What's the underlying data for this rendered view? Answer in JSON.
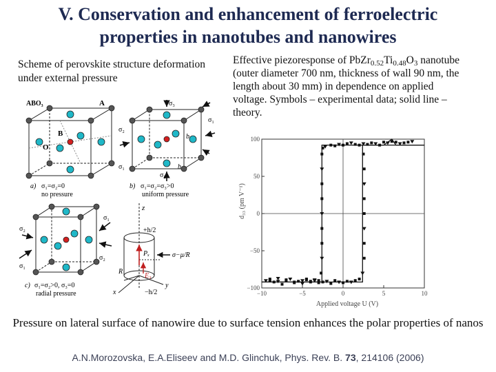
{
  "slide": {
    "title_line1": "V. Conservation and enhancement of ferroelectric",
    "title_line2": "properties in nanotubes and nanowires",
    "left_caption": "Scheme of perovskite structure deformation under external pressure",
    "right_caption": {
      "part1": "Effective piezoresponse of Pb",
      "el1": "Zr",
      "sub1": "0.52",
      "el2": "Ti",
      "sub2": "0.48",
      "el3": "O",
      "sub3": "3",
      "part2": " nanotube (outer diameter 700 nm, thickness of wall 90 nm, the length about 30 mm) in dependence on applied voltage. Symbols – experimental data; solid line – theory."
    },
    "bottom_text": "Pressure on lateral surface of nanowire due to surface tension enhances the polar properties of nanos",
    "citation": {
      "authors": "A.N.Morozovska, E.A.Eliseev and M.D. Glinchuk, Phys. Rev. B. ",
      "volume": "73",
      "rest": ", 214106 (2006)"
    }
  },
  "scheme": {
    "label_abo3": "ABO₃",
    "label_A": "A",
    "label_B": "B",
    "label_O": "O",
    "label_a_panel": "a)",
    "label_a_eq": "σ₁=σ₂=0",
    "label_a_sub": "no pressure",
    "label_b_panel": "b)",
    "label_b_eq": "σ₁=σ₂=σ₃>0",
    "label_b_sub": "uniform pressure",
    "label_c_panel": "c)",
    "label_c_eq": "σ₁=σ₂>0,  σ₃=0",
    "label_c_sub": "radial pressure",
    "sigma1": "σ₁",
    "sigma2": "σ₂",
    "sigma3": "σ₃",
    "axis_a": "a",
    "axis_b": "b",
    "axis_c": "c",
    "cyl_z": "z",
    "cyl_top": "+h/2",
    "cyl_bottom": "−h/2",
    "cyl_pz": "Pₓ",
    "cyl_e3": "E₃",
    "cyl_sigma": "σ−μ/R",
    "cyl_R": "R",
    "cyl_x": "x",
    "cyl_y": "y",
    "colors": {
      "atom_a": "#555555",
      "atom_b": "#d42020",
      "atom_o": "#1fb8c8"
    }
  },
  "chart_data": {
    "type": "scatter",
    "xlabel": "Applied voltage U (V)",
    "ylabel": "d₃₃ (pm V⁻¹)",
    "xlim": [
      -10,
      10
    ],
    "ylim": [
      -100,
      100
    ],
    "xticks": [
      -10,
      -5,
      0,
      5,
      10
    ],
    "yticks": [
      -100,
      -50,
      0,
      50,
      100
    ],
    "series": [
      {
        "role": "theory",
        "style": "solid",
        "x_up": [
          -10,
          -5,
          -3,
          -2.6,
          -2.6,
          0,
          2,
          5,
          6,
          6.5,
          7,
          10
        ],
        "y_up": [
          -92,
          -92,
          -92,
          -92,
          92,
          92,
          92,
          92,
          100,
          92,
          92,
          92
        ],
        "x_down": [
          10,
          2.4,
          2.4,
          -2,
          -6,
          -10
        ],
        "y_down": [
          92,
          92,
          -92,
          -92,
          -92,
          -92
        ]
      },
      {
        "role": "experiment",
        "style": "symbols",
        "x": [
          -9.5,
          -9,
          -8.5,
          -8,
          -7.5,
          -7,
          -6.5,
          -6,
          -5.5,
          -5,
          -4.5,
          -4,
          -3.5,
          -3,
          -2.7,
          -2.6,
          -2.6,
          -2.6,
          -2.6,
          -2.6,
          -2.6,
          -2.6,
          -2.6,
          -2.5,
          -2.2,
          -1.5,
          -1,
          -0.5,
          0,
          0.5,
          1,
          1.5,
          2,
          2.5,
          3,
          3.5,
          4,
          4.5,
          5,
          5.5,
          6,
          6.5,
          7,
          7.5,
          8,
          8.5,
          2.5,
          2.6,
          2.6,
          2.6,
          2.6,
          2.6,
          2.6,
          2.6,
          2.4,
          2,
          1.5,
          1,
          0.5,
          0,
          -0.5,
          -1,
          -1.5,
          -2,
          -2.5,
          -3,
          -3.5,
          -4,
          -4.5,
          -5,
          -6,
          -7,
          -8,
          -9
        ],
        "y": [
          -90,
          -88,
          -92,
          -87,
          -95,
          -90,
          -88,
          -93,
          -91,
          -94,
          -89,
          -92,
          -90,
          -93,
          -80,
          -60,
          -40,
          -20,
          0,
          20,
          40,
          60,
          80,
          88,
          90,
          92,
          91,
          93,
          92,
          94,
          95,
          93,
          92,
          94,
          93,
          95,
          94,
          92,
          96,
          95,
          97,
          96,
          94,
          95,
          96,
          97,
          80,
          60,
          40,
          20,
          0,
          -20,
          -40,
          -60,
          -80,
          -88,
          -90,
          -92,
          -91,
          -93,
          -92,
          -90,
          -94,
          -91,
          -92,
          -90,
          -89,
          -91,
          -88,
          -90,
          -92,
          -89,
          -91,
          -90
        ]
      }
    ]
  }
}
